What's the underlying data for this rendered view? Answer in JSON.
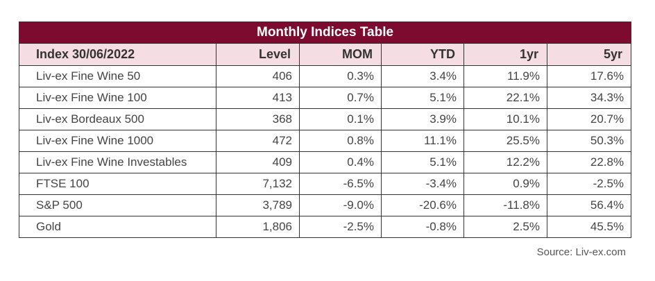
{
  "chart_data": {
    "type": "table",
    "title": "Monthly Indices Table",
    "columns": [
      "Index 30/06/2022",
      "Level",
      "MOM",
      "YTD",
      "1yr",
      "5yr"
    ],
    "rows": [
      [
        "Liv-ex Fine Wine 50",
        "406",
        "0.3%",
        "3.4%",
        "11.9%",
        "17.6%"
      ],
      [
        "Liv-ex Fine Wine 100",
        "413",
        "0.7%",
        "5.1%",
        "22.1%",
        "34.3%"
      ],
      [
        "Liv-ex Bordeaux 500",
        "368",
        "0.1%",
        "3.9%",
        "10.1%",
        "20.7%"
      ],
      [
        "Liv-ex Fine Wine 1000",
        "472",
        "0.8%",
        "11.1%",
        "25.5%",
        "50.3%"
      ],
      [
        "Liv-ex Fine Wine Investables",
        "409",
        "0.4%",
        "5.1%",
        "12.2%",
        "22.8%"
      ],
      [
        "FTSE 100",
        "7,132",
        "-6.5%",
        "-3.4%",
        "0.9%",
        "-2.5%"
      ],
      [
        "S&P 500",
        "3,789",
        "-9.0%",
        "-20.6%",
        "-11.8%",
        "56.4%"
      ],
      [
        "Gold",
        "1,806",
        "-2.5%",
        "-0.8%",
        "2.5%",
        "45.5%"
      ]
    ],
    "source": "Source: Liv-ex.com"
  },
  "colors": {
    "title_bg": "#7d0a2f",
    "title_text": "#ffffff",
    "header_bg": "#f4dde3",
    "border": "#333333"
  }
}
